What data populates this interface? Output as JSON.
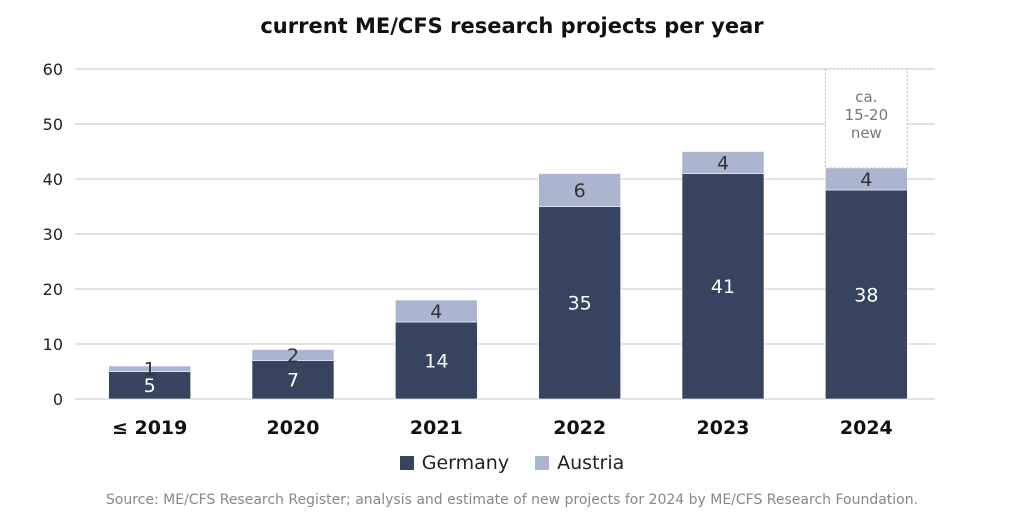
{
  "chart_data": {
    "type": "bar",
    "stacked": true,
    "title": "current ME/CFS research projects per year",
    "categories": [
      "≤ 2019",
      "2020",
      "2021",
      "2022",
      "2023",
      "2024"
    ],
    "series": [
      {
        "name": "Germany",
        "values": [
          5,
          7,
          14,
          35,
          41,
          38
        ],
        "color": "#37445f",
        "label_color": "#ffffff"
      },
      {
        "name": "Austria",
        "values": [
          1,
          2,
          4,
          6,
          4,
          4
        ],
        "color": "#abb5d0",
        "label_color": "#333333"
      }
    ],
    "annotation": {
      "category": "2024",
      "from": 42,
      "to": 60,
      "text": [
        "ca.",
        "15-20",
        "new"
      ]
    },
    "ylim": [
      0,
      60
    ],
    "yticks": [
      0,
      10,
      20,
      30,
      40,
      50,
      60
    ],
    "grid": true,
    "legend_position": "bottom",
    "xlabel": "",
    "ylabel": ""
  },
  "source": "Source: ME/CFS Research Register; analysis and estimate of new projects for 2024 by ME/CFS Research Foundation."
}
